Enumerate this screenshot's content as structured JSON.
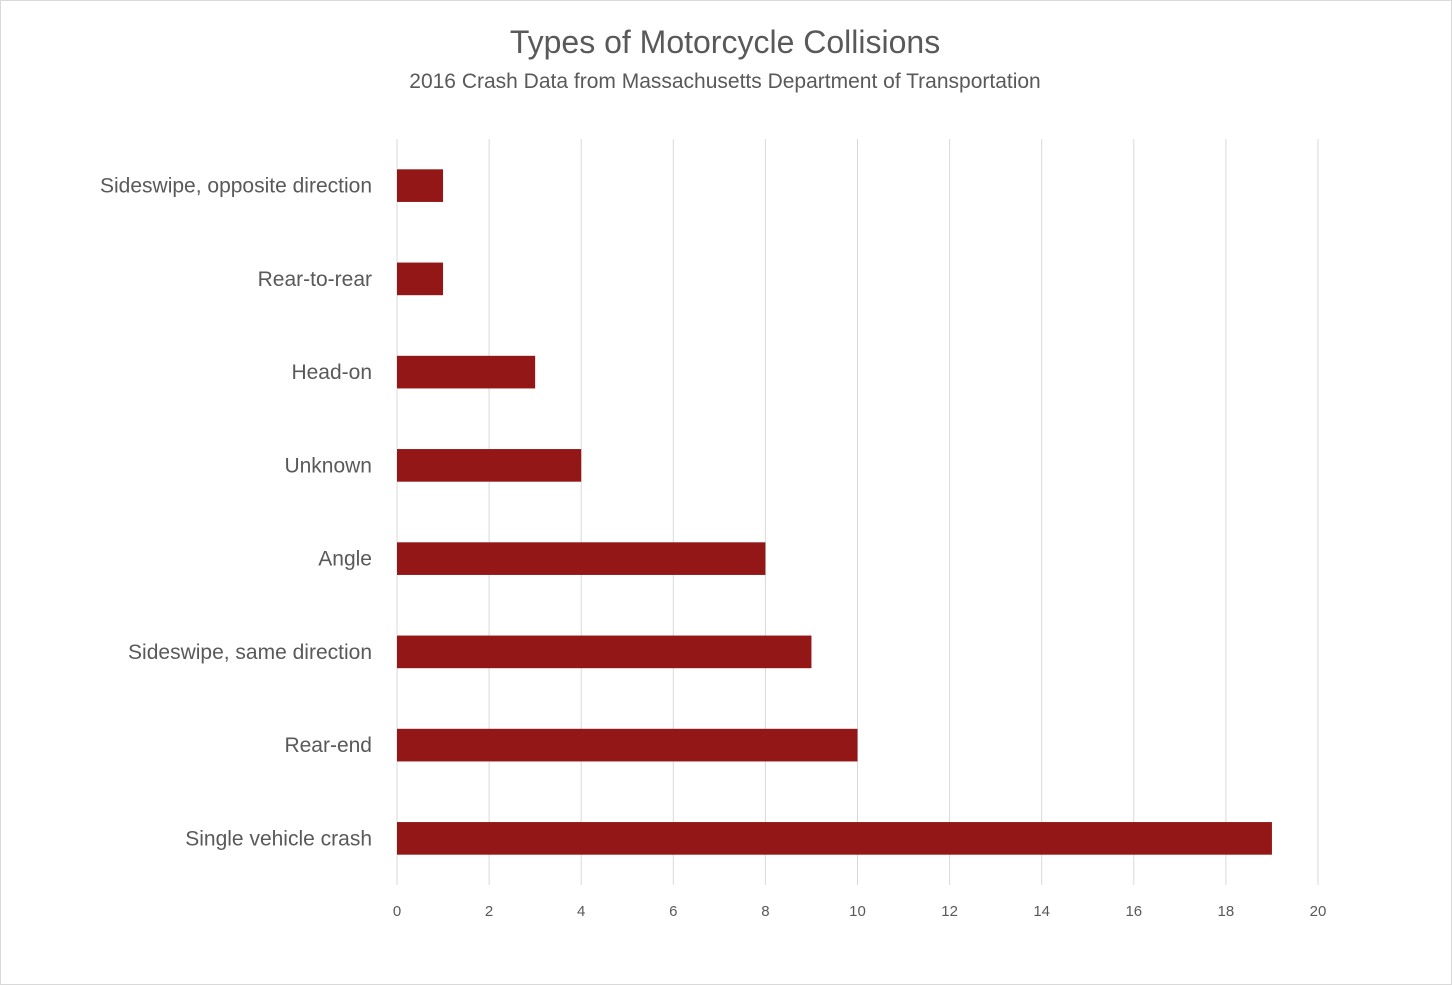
{
  "chart_data": {
    "type": "bar",
    "orientation": "horizontal",
    "title": "Types of Motorcycle Collisions",
    "subtitle": "2016 Crash Data from Massachusetts Department of Transportation",
    "categories": [
      "Sideswipe, opposite direction",
      "Rear-to-rear",
      "Head-on",
      "Unknown",
      "Angle",
      "Sideswipe, same direction",
      "Rear-end",
      "Single vehicle crash"
    ],
    "values": [
      1,
      1,
      3,
      4,
      8,
      9,
      10,
      19
    ],
    "xlim": [
      0,
      20
    ],
    "xticks": [
      "0",
      "2",
      "4",
      "6",
      "8",
      "10",
      "12",
      "14",
      "16",
      "18",
      "20"
    ],
    "xlabel": "",
    "ylabel": "",
    "grid": "vertical",
    "legend": "none",
    "bar_color": "#941717"
  }
}
